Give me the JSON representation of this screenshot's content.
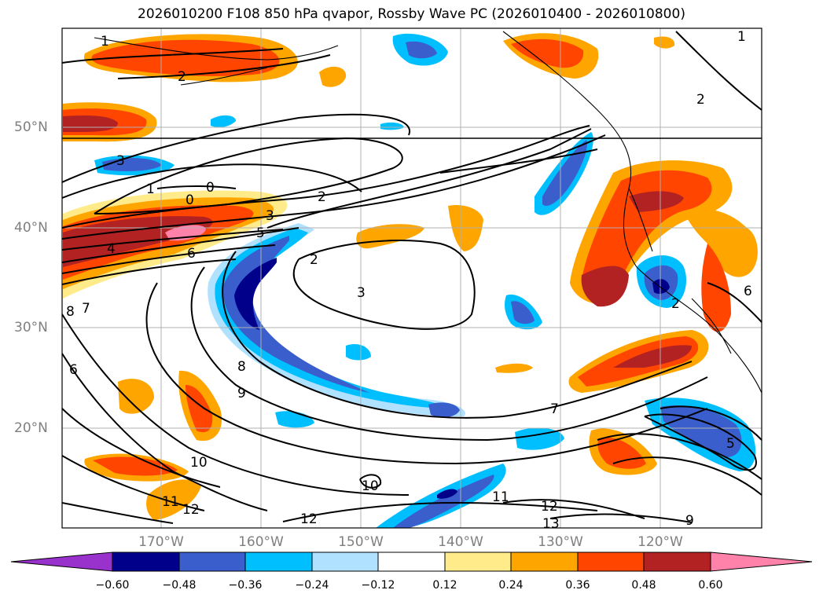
{
  "title": "2026010200 F108 850 hPa qvapor, Rossby Wave PC (2026010400 - 2026010800)",
  "lat_labels": [
    "50°N",
    "40°N",
    "30°N",
    "20°N"
  ],
  "lon_labels": [
    "170°W",
    "160°W",
    "150°W",
    "140°W",
    "130°W",
    "120°W"
  ],
  "colorbar": {
    "ticks": [
      "−0.60",
      "−0.48",
      "−0.36",
      "−0.24",
      "−0.12",
      "0.12",
      "0.24",
      "0.36",
      "0.48",
      "0.60"
    ],
    "colors": [
      "#9932cc",
      "#00008b",
      "#3a5fcd",
      "#00bfff",
      "#b0e2ff",
      "#ffffff",
      "#ffeb8a",
      "#ffa500",
      "#ff4500",
      "#b22222",
      "#ff82ab"
    ]
  },
  "contour_labels": [
    "1",
    "2",
    "3",
    "1",
    "0",
    "0",
    "2",
    "3",
    "4",
    "5",
    "6",
    "2",
    "3",
    "8",
    "7",
    "6",
    "8",
    "9",
    "10",
    "11",
    "12",
    "7",
    "10",
    "11",
    "12",
    "13",
    "12",
    "9",
    "5",
    "6",
    "2",
    "1",
    "2"
  ]
}
